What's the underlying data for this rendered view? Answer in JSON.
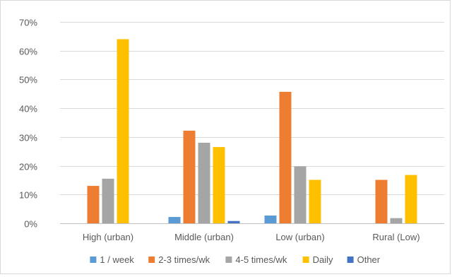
{
  "chart_data": {
    "type": "bar",
    "title": "",
    "xlabel": "",
    "ylabel": "",
    "categories": [
      "High (urban)",
      "Middle (urban)",
      "Low (urban)",
      "Rural (Low)"
    ],
    "ylim": [
      0,
      0.7
    ],
    "yticks": [
      0,
      0.1,
      0.2,
      0.3,
      0.4,
      0.5,
      0.6,
      0.7
    ],
    "ytick_labels": [
      "0%",
      "10%",
      "20%",
      "30%",
      "40%",
      "50%",
      "60%",
      "70%"
    ],
    "grid": true,
    "legend_position": "bottom",
    "series": [
      {
        "name": "1 / week",
        "color": "#5b9bd5",
        "values": [
          0,
          0.022,
          0.027,
          0
        ]
      },
      {
        "name": "2-3 times/wk",
        "color": "#ed7d31",
        "values": [
          0.13,
          0.322,
          0.457,
          0.151
        ]
      },
      {
        "name": "4-5 times/wk",
        "color": "#a5a5a5",
        "values": [
          0.155,
          0.28,
          0.198,
          0.018
        ]
      },
      {
        "name": "Daily",
        "color": "#ffc000",
        "values": [
          0.64,
          0.265,
          0.151,
          0.168
        ]
      },
      {
        "name": "Other",
        "color": "#4472c4",
        "values": [
          0,
          0.008,
          0,
          0
        ]
      }
    ]
  }
}
